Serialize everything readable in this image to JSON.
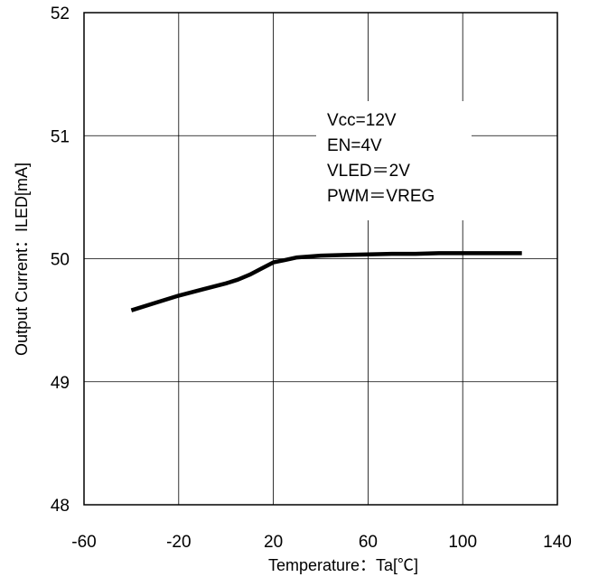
{
  "chart_data": {
    "type": "line",
    "title": "",
    "xlabel": "Temperature：Ta[℃]",
    "ylabel": "Output Current：ILED[mA]",
    "xlim": [
      -60,
      140
    ],
    "ylim": [
      48,
      52
    ],
    "x_ticks": [
      "-60",
      "-20",
      "20",
      "60",
      "100",
      "140"
    ],
    "y_ticks": [
      "48",
      "49",
      "50",
      "51",
      "52"
    ],
    "grid": true,
    "legend": "none",
    "annotations": [
      "Vcc=12V",
      "EN=4V",
      "VLED＝2V",
      "PWM＝VREG"
    ],
    "series": [
      {
        "color": "#000000",
        "x": [
          -40,
          -30,
          -20,
          -10,
          0,
          5,
          10,
          15,
          20,
          25,
          30,
          40,
          50,
          60,
          70,
          80,
          90,
          100,
          110,
          125
        ],
        "y": [
          49.58,
          49.64,
          49.7,
          49.75,
          49.8,
          49.83,
          49.87,
          49.92,
          49.97,
          49.99,
          50.01,
          50.025,
          50.03,
          50.035,
          50.04,
          50.04,
          50.045,
          50.045,
          50.045,
          50.045
        ]
      }
    ]
  }
}
